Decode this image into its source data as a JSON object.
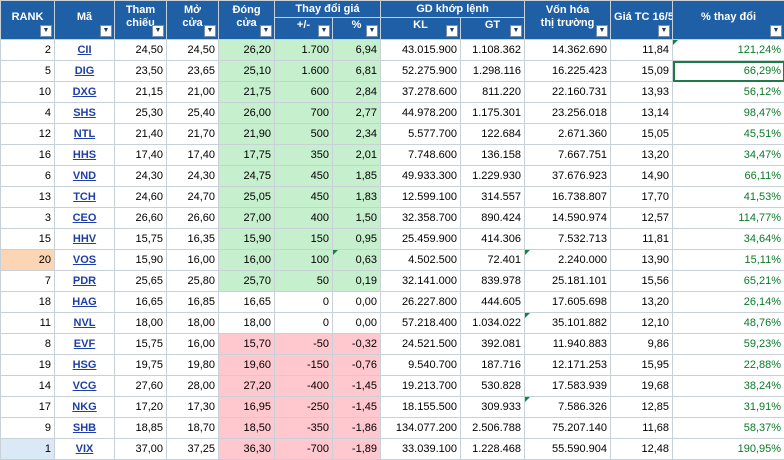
{
  "header": {
    "rank": "RANK",
    "code": "Mã",
    "ref_line1": "Tham",
    "ref_line2": "chiếu",
    "open_line1": "Mở",
    "open_line2": "cửa",
    "close_line1": "Đóng",
    "close_line2": "cửa",
    "change_group": "Thay đổi giá",
    "change_abs": "+/-",
    "change_pct": "%",
    "match_group": "GD khớp lệnh",
    "kl": "KL",
    "gt": "GT",
    "cap_line1": "Vốn hóa",
    "cap_line2": "thị trường",
    "price_tc": "Giá TC 16/5",
    "pct_change": "% thay đổi",
    "filter_glyph": "▼"
  },
  "rows": [
    {
      "rank": "2",
      "code": "CII",
      "ref": "24,50",
      "open": "24,50",
      "close": "26,20",
      "chg": "1.700",
      "pct": "6,94",
      "kl": "43.015.900",
      "gt": "1.108.362",
      "cap": "14.362.690",
      "tc": "11,84",
      "ytd": "121,24%",
      "dir": "up"
    },
    {
      "rank": "5",
      "code": "DIG",
      "ref": "23,50",
      "open": "23,65",
      "close": "25,10",
      "chg": "1.600",
      "pct": "6,81",
      "kl": "52.275.900",
      "gt": "1.298.116",
      "cap": "16.225.423",
      "tc": "15,09",
      "ytd": "66,29%",
      "dir": "up"
    },
    {
      "rank": "10",
      "code": "DXG",
      "ref": "21,15",
      "open": "21,00",
      "close": "21,75",
      "chg": "600",
      "pct": "2,84",
      "kl": "37.278.600",
      "gt": "811.220",
      "cap": "22.160.731",
      "tc": "13,93",
      "ytd": "56,12%",
      "dir": "up"
    },
    {
      "rank": "4",
      "code": "SHS",
      "ref": "25,30",
      "open": "25,40",
      "close": "26,00",
      "chg": "700",
      "pct": "2,77",
      "kl": "44.978.200",
      "gt": "1.175.301",
      "cap": "23.256.018",
      "tc": "13,14",
      "ytd": "98,47%",
      "dir": "up"
    },
    {
      "rank": "12",
      "code": "NTL",
      "ref": "21,40",
      "open": "21,70",
      "close": "21,90",
      "chg": "500",
      "pct": "2,34",
      "kl": "5.577.700",
      "gt": "122.684",
      "cap": "2.671.360",
      "tc": "15,05",
      "ytd": "45,51%",
      "dir": "up"
    },
    {
      "rank": "16",
      "code": "HHS",
      "ref": "17,40",
      "open": "17,40",
      "close": "17,75",
      "chg": "350",
      "pct": "2,01",
      "kl": "7.748.600",
      "gt": "136.158",
      "cap": "7.667.751",
      "tc": "13,20",
      "ytd": "34,47%",
      "dir": "up"
    },
    {
      "rank": "6",
      "code": "VND",
      "ref": "24,30",
      "open": "24,30",
      "close": "24,75",
      "chg": "450",
      "pct": "1,85",
      "kl": "49.933.300",
      "gt": "1.229.930",
      "cap": "37.676.923",
      "tc": "14,90",
      "ytd": "66,11%",
      "dir": "up"
    },
    {
      "rank": "13",
      "code": "TCH",
      "ref": "24,60",
      "open": "24,70",
      "close": "25,05",
      "chg": "450",
      "pct": "1,83",
      "kl": "12.599.100",
      "gt": "314.557",
      "cap": "16.738.807",
      "tc": "17,70",
      "ytd": "41,53%",
      "dir": "up"
    },
    {
      "rank": "3",
      "code": "CEO",
      "ref": "26,60",
      "open": "26,60",
      "close": "27,00",
      "chg": "400",
      "pct": "1,50",
      "kl": "32.358.700",
      "gt": "890.424",
      "cap": "14.590.974",
      "tc": "12,57",
      "ytd": "114,77%",
      "dir": "up"
    },
    {
      "rank": "15",
      "code": "HHV",
      "ref": "15,75",
      "open": "16,35",
      "close": "15,90",
      "chg": "150",
      "pct": "0,95",
      "kl": "25.459.900",
      "gt": "414.306",
      "cap": "7.532.713",
      "tc": "11,81",
      "ytd": "34,64%",
      "dir": "up"
    },
    {
      "rank": "20",
      "code": "VOS",
      "ref": "15,90",
      "open": "16,00",
      "close": "16,00",
      "chg": "100",
      "pct": "0,63",
      "kl": "4.502.500",
      "gt": "72.401",
      "cap": "2.240.000",
      "tc": "13,90",
      "ytd": "15,11%",
      "dir": "up"
    },
    {
      "rank": "7",
      "code": "PDR",
      "ref": "25,65",
      "open": "25,80",
      "close": "25,70",
      "chg": "50",
      "pct": "0,19",
      "kl": "32.141.000",
      "gt": "839.978",
      "cap": "25.181.101",
      "tc": "15,56",
      "ytd": "65,21%",
      "dir": "up"
    },
    {
      "rank": "18",
      "code": "HAG",
      "ref": "16,65",
      "open": "16,85",
      "close": "16,65",
      "chg": "0",
      "pct": "0,00",
      "kl": "26.227.800",
      "gt": "444.605",
      "cap": "17.605.698",
      "tc": "13,20",
      "ytd": "26,14%",
      "dir": "flat"
    },
    {
      "rank": "11",
      "code": "NVL",
      "ref": "18,00",
      "open": "18,00",
      "close": "18,00",
      "chg": "0",
      "pct": "0,00",
      "kl": "57.218.400",
      "gt": "1.034.022",
      "cap": "35.101.882",
      "tc": "12,10",
      "ytd": "48,76%",
      "dir": "flat"
    },
    {
      "rank": "8",
      "code": "EVF",
      "ref": "15,75",
      "open": "16,00",
      "close": "15,70",
      "chg": "-50",
      "pct": "-0,32",
      "kl": "24.521.500",
      "gt": "392.081",
      "cap": "11.940.883",
      "tc": "9,86",
      "ytd": "59,23%",
      "dir": "down"
    },
    {
      "rank": "19",
      "code": "HSG",
      "ref": "19,75",
      "open": "19,80",
      "close": "19,60",
      "chg": "-150",
      "pct": "-0,76",
      "kl": "9.540.700",
      "gt": "187.716",
      "cap": "12.171.253",
      "tc": "15,95",
      "ytd": "22,88%",
      "dir": "down"
    },
    {
      "rank": "14",
      "code": "VCG",
      "ref": "27,60",
      "open": "28,00",
      "close": "27,20",
      "chg": "-400",
      "pct": "-1,45",
      "kl": "19.213.700",
      "gt": "530.828",
      "cap": "17.583.939",
      "tc": "19,68",
      "ytd": "38,24%",
      "dir": "down"
    },
    {
      "rank": "17",
      "code": "NKG",
      "ref": "17,20",
      "open": "17,30",
      "close": "16,95",
      "chg": "-250",
      "pct": "-1,45",
      "kl": "18.155.500",
      "gt": "309.933",
      "cap": "7.586.326",
      "tc": "12,85",
      "ytd": "31,91%",
      "dir": "down"
    },
    {
      "rank": "9",
      "code": "SHB",
      "ref": "18,85",
      "open": "18,70",
      "close": "18,50",
      "chg": "-350",
      "pct": "-1,86",
      "kl": "134.077.200",
      "gt": "2.506.788",
      "cap": "75.207.140",
      "tc": "11,68",
      "ytd": "58,37%",
      "dir": "down"
    },
    {
      "rank": "1",
      "code": "VIX",
      "ref": "37,00",
      "open": "37,25",
      "close": "36,30",
      "chg": "-700",
      "pct": "-1,89",
      "kl": "33.039.100",
      "gt": "1.228.468",
      "cap": "55.590.904",
      "tc": "12,48",
      "ytd": "190,95%",
      "dir": "down"
    }
  ]
}
